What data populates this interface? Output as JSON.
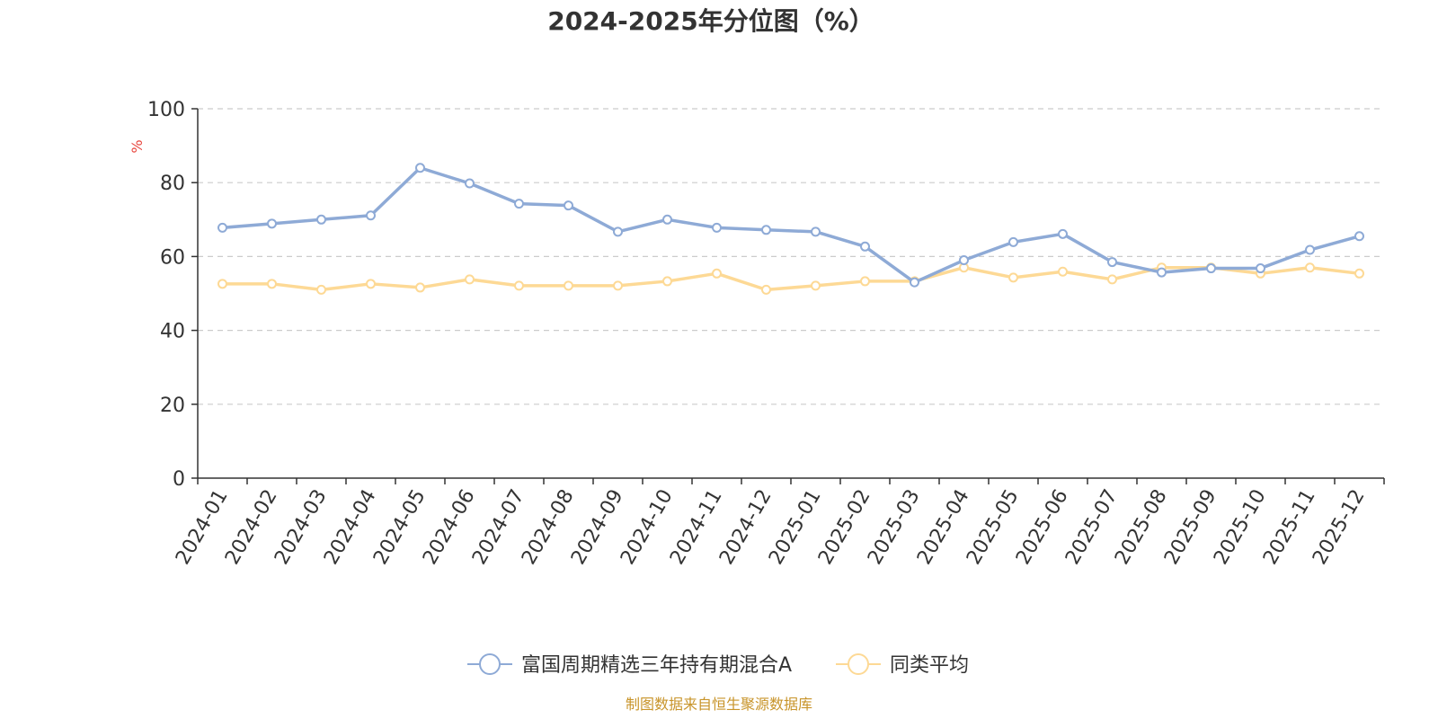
{
  "chart_data": {
    "type": "line",
    "title": "2024-2025年分位图（%）",
    "ylabel": "%",
    "ylim": [
      0,
      100
    ],
    "yticks": [
      "0",
      "20",
      "40",
      "60",
      "80",
      "100"
    ],
    "grid": true,
    "legend_position": "bottom",
    "categories": [
      "2024-01",
      "2024-02",
      "2024-03",
      "2024-04",
      "2024-05",
      "2024-06",
      "2024-07",
      "2024-08",
      "2024-09",
      "2024-10",
      "2024-11",
      "2024-12",
      "2025-01",
      "2025-02",
      "2025-03",
      "2025-04",
      "2025-05",
      "2025-06",
      "2025-07",
      "2025-08",
      "2025-09",
      "2025-10",
      "2025-11",
      "2025-12"
    ],
    "series": [
      {
        "name": "富国周期精选三年持有期混合A",
        "color": "#8eaad6",
        "values": [
          67.8,
          68.9,
          70.0,
          71.1,
          84.0,
          79.8,
          74.3,
          73.8,
          66.7,
          70.0,
          67.8,
          67.2,
          66.7,
          62.7,
          53.0,
          59.0,
          63.9,
          66.1,
          58.5,
          55.7,
          56.8,
          56.8,
          61.8,
          65.5
        ]
      },
      {
        "name": "同类平均",
        "color": "#fdd995",
        "values": [
          52.6,
          52.6,
          51.0,
          52.6,
          51.6,
          53.8,
          52.1,
          52.1,
          52.1,
          53.3,
          55.4,
          51.0,
          52.1,
          53.3,
          53.3,
          57.0,
          54.3,
          55.9,
          53.8,
          57.0,
          57.0,
          55.4,
          57.0,
          55.4
        ]
      }
    ]
  },
  "colors": {
    "axis": "#333333",
    "grid": "#cccccc",
    "unit_label": "#e8473f",
    "source_text": "#c8942a"
  },
  "footer": {
    "source": "制图数据来自恒生聚源数据库"
  }
}
